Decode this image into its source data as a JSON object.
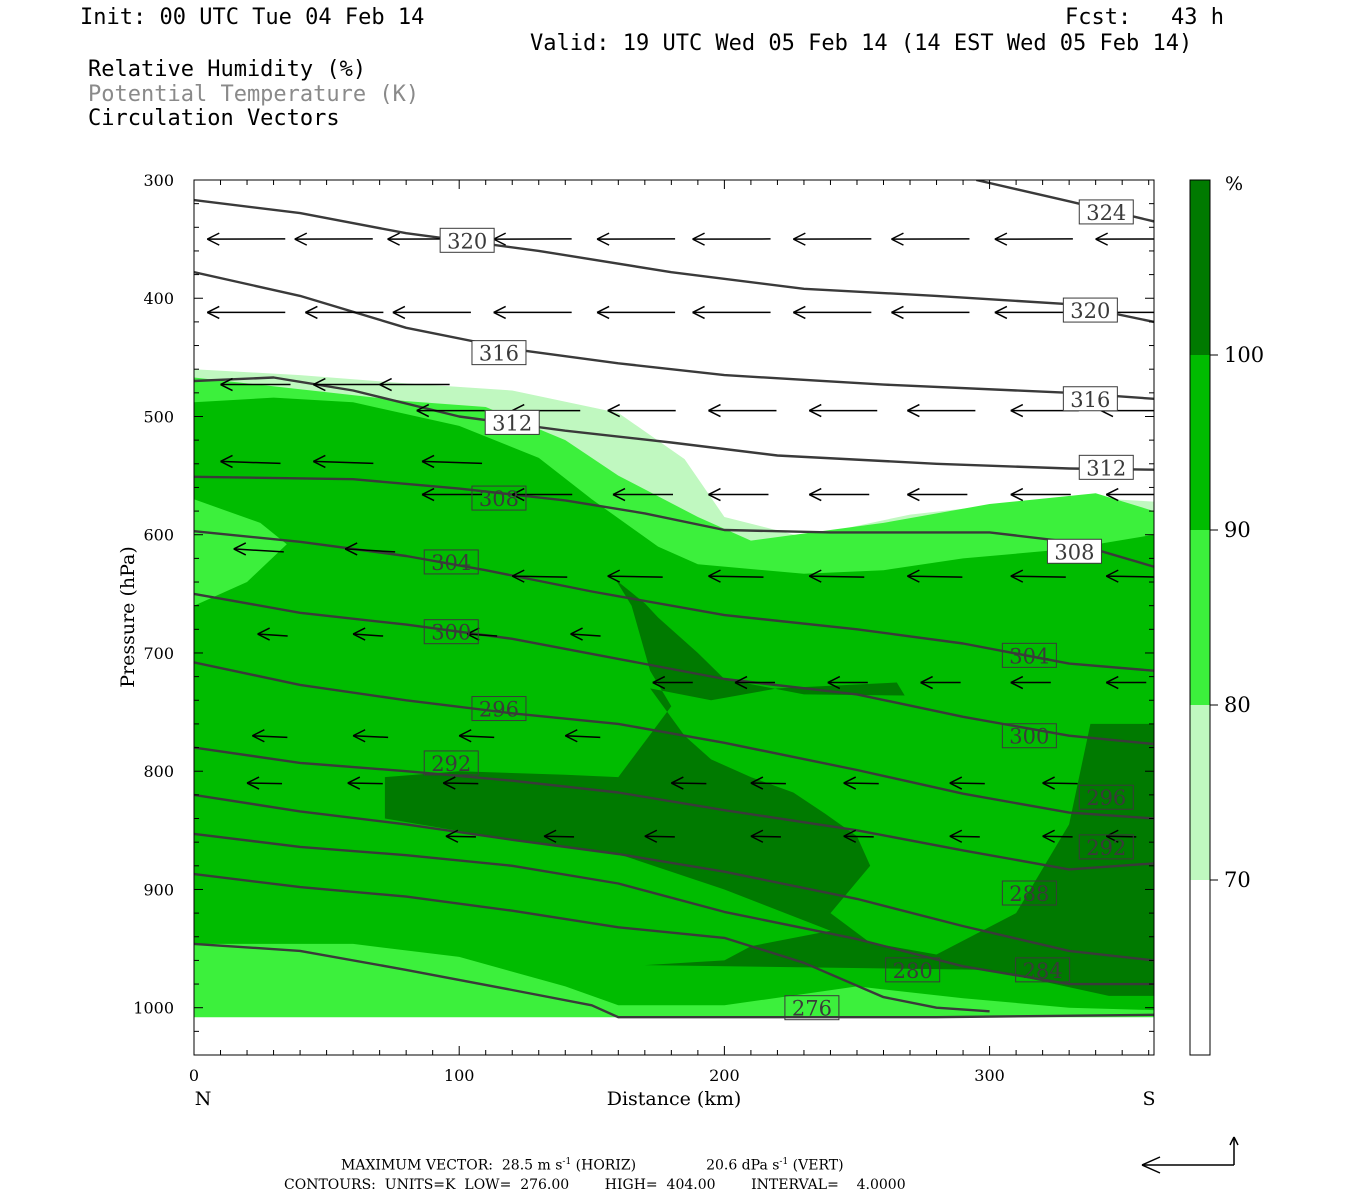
{
  "header": {
    "init": "Init: 00 UTC Tue 04 Feb 14",
    "fcst": "Fcst:   43 h",
    "valid": "Valid: 19 UTC Wed 05 Feb 14 (14 EST Wed 05 Feb 14)",
    "fields": [
      "Relative Humidity (%)",
      "Potential Temperature (K)",
      "Circulation Vectors"
    ]
  },
  "footer": {
    "max_vector": "MAXIMUM VECTOR:  28.5 m s",
    "max_vector_h_unit": " (HORIZ)",
    "max_vector_v": "20.6 dPa s",
    "max_vector_v_unit": " (VERT)",
    "sup": "-1",
    "contours": "CONTOURS:  UNITS=K  LOW=  276.00        HIGH=  404.00        INTERVAL=    4.0000"
  },
  "chart_data": {
    "type": "cross-section",
    "xlabel": "Distance (km)",
    "ylabel": "Pressure (hPa)",
    "x_end_labels": [
      "N",
      "S"
    ],
    "xlim": [
      0,
      362
    ],
    "ylim": [
      1040,
      300
    ],
    "xticks": [
      0,
      100,
      200,
      300
    ],
    "yticks": [
      300,
      400,
      500,
      600,
      700,
      800,
      900,
      1000
    ],
    "colorbar": {
      "unit": "%",
      "levels": [
        70,
        80,
        90,
        100
      ],
      "colors": [
        "#ffffff",
        "#c0f8c0",
        "#3cf03c",
        "#00bc00",
        "#007a00"
      ]
    },
    "theta_contour_labels": [
      {
        "value": "324",
        "x": 344,
        "p": 327
      },
      {
        "value": "320",
        "x": 103,
        "p": 351
      },
      {
        "value": "320",
        "x": 338,
        "p": 410
      },
      {
        "value": "316",
        "x": 115,
        "p": 446
      },
      {
        "value": "316",
        "x": 338,
        "p": 485
      },
      {
        "value": "312",
        "x": 120,
        "p": 505
      },
      {
        "value": "312",
        "x": 344,
        "p": 543
      },
      {
        "value": "308",
        "x": 115,
        "p": 569
      },
      {
        "value": "308",
        "x": 332,
        "p": 614
      },
      {
        "value": "304",
        "x": 97,
        "p": 623
      },
      {
        "value": "304",
        "x": 315,
        "p": 702
      },
      {
        "value": "300",
        "x": 97,
        "p": 682
      },
      {
        "value": "300",
        "x": 315,
        "p": 770
      },
      {
        "value": "296",
        "x": 115,
        "p": 747
      },
      {
        "value": "296",
        "x": 344,
        "p": 822
      },
      {
        "value": "292",
        "x": 97,
        "p": 793
      },
      {
        "value": "292",
        "x": 344,
        "p": 864
      },
      {
        "value": "288",
        "x": 315,
        "p": 903
      },
      {
        "value": "284",
        "x": 320,
        "p": 968
      },
      {
        "value": "280",
        "x": 271,
        "p": 968
      },
      {
        "value": "276",
        "x": 233,
        "p": 1000
      }
    ],
    "theta_contours": [
      {
        "value": 324,
        "points": [
          [
            295,
            300
          ],
          [
            330,
            318
          ],
          [
            362,
            335
          ]
        ]
      },
      {
        "value": 320,
        "points": [
          [
            0,
            317
          ],
          [
            40,
            328
          ],
          [
            80,
            345
          ],
          [
            130,
            360
          ],
          [
            180,
            378
          ],
          [
            230,
            392
          ],
          [
            280,
            398
          ],
          [
            330,
            405
          ],
          [
            362,
            420
          ]
        ]
      },
      {
        "value": 316,
        "points": [
          [
            0,
            378
          ],
          [
            40,
            398
          ],
          [
            80,
            425
          ],
          [
            120,
            443
          ],
          [
            160,
            455
          ],
          [
            200,
            465
          ],
          [
            260,
            473
          ],
          [
            330,
            480
          ],
          [
            362,
            485
          ]
        ]
      },
      {
        "value": 312,
        "points": [
          [
            0,
            470
          ],
          [
            30,
            467
          ],
          [
            60,
            478
          ],
          [
            100,
            500
          ],
          [
            140,
            512
          ],
          [
            180,
            522
          ],
          [
            220,
            533
          ],
          [
            280,
            540
          ],
          [
            330,
            544
          ],
          [
            362,
            545
          ]
        ]
      },
      {
        "value": 308,
        "points": [
          [
            0,
            551
          ],
          [
            60,
            553
          ],
          [
            100,
            561
          ],
          [
            140,
            571
          ],
          [
            170,
            582
          ],
          [
            200,
            596
          ],
          [
            240,
            598
          ],
          [
            300,
            598
          ],
          [
            330,
            606
          ],
          [
            362,
            627
          ]
        ]
      },
      {
        "value": 304,
        "points": [
          [
            0,
            597
          ],
          [
            40,
            606
          ],
          [
            80,
            618
          ],
          [
            110,
            630
          ],
          [
            150,
            648
          ],
          [
            200,
            668
          ],
          [
            250,
            680
          ],
          [
            290,
            692
          ],
          [
            330,
            709
          ],
          [
            362,
            715
          ]
        ]
      },
      {
        "value": 300,
        "points": [
          [
            0,
            650
          ],
          [
            40,
            666
          ],
          [
            80,
            676
          ],
          [
            120,
            688
          ],
          [
            160,
            705
          ],
          [
            200,
            722
          ],
          [
            250,
            735
          ],
          [
            290,
            754
          ],
          [
            330,
            770
          ],
          [
            362,
            777
          ]
        ]
      },
      {
        "value": 296,
        "points": [
          [
            0,
            708
          ],
          [
            40,
            727
          ],
          [
            80,
            740
          ],
          [
            120,
            751
          ],
          [
            160,
            760
          ],
          [
            200,
            776
          ],
          [
            250,
            799
          ],
          [
            290,
            819
          ],
          [
            330,
            835
          ],
          [
            362,
            840
          ]
        ]
      },
      {
        "value": 292,
        "points": [
          [
            0,
            780
          ],
          [
            40,
            793
          ],
          [
            80,
            800
          ],
          [
            120,
            808
          ],
          [
            160,
            818
          ],
          [
            200,
            833
          ],
          [
            250,
            850
          ],
          [
            290,
            867
          ],
          [
            330,
            883
          ],
          [
            362,
            878
          ]
        ]
      },
      {
        "value": 288,
        "points": [
          [
            0,
            820
          ],
          [
            40,
            834
          ],
          [
            80,
            845
          ],
          [
            120,
            858
          ],
          [
            160,
            870
          ],
          [
            200,
            885
          ],
          [
            250,
            908
          ],
          [
            290,
            931
          ],
          [
            330,
            952
          ],
          [
            362,
            960
          ]
        ]
      },
      {
        "value": 284,
        "points": [
          [
            0,
            853
          ],
          [
            40,
            864
          ],
          [
            80,
            871
          ],
          [
            120,
            880
          ],
          [
            160,
            895
          ],
          [
            200,
            919
          ],
          [
            250,
            942
          ],
          [
            290,
            965
          ],
          [
            330,
            980
          ],
          [
            362,
            980
          ]
        ]
      },
      {
        "value": 280,
        "points": [
          [
            0,
            887
          ],
          [
            40,
            898
          ],
          [
            80,
            906
          ],
          [
            120,
            918
          ],
          [
            160,
            932
          ],
          [
            200,
            941
          ],
          [
            230,
            962
          ],
          [
            260,
            991
          ],
          [
            280,
            1000
          ],
          [
            300,
            1003
          ]
        ]
      },
      {
        "value": 276,
        "points": [
          [
            0,
            946
          ],
          [
            40,
            952
          ],
          [
            80,
            968
          ],
          [
            120,
            985
          ],
          [
            150,
            998
          ],
          [
            160,
            1008
          ],
          [
            220,
            1008
          ],
          [
            280,
            1008
          ],
          [
            362,
            1006
          ]
        ]
      }
    ],
    "rh_regions": [
      {
        "level": "70-80",
        "points": [
          [
            0,
            460
          ],
          [
            40,
            465
          ],
          [
            80,
            472
          ],
          [
            120,
            478
          ],
          [
            160,
            497
          ],
          [
            185,
            536
          ],
          [
            200,
            585
          ],
          [
            230,
            602
          ],
          [
            270,
            583
          ],
          [
            330,
            568
          ],
          [
            362,
            572
          ],
          [
            362,
            1000
          ],
          [
            0,
            1000
          ]
        ]
      },
      {
        "level": "80-90",
        "points": [
          [
            0,
            467
          ],
          [
            40,
            477
          ],
          [
            80,
            487
          ],
          [
            110,
            492
          ],
          [
            140,
            520
          ],
          [
            160,
            550
          ],
          [
            190,
            585
          ],
          [
            210,
            605
          ],
          [
            260,
            590
          ],
          [
            300,
            574
          ],
          [
            340,
            565
          ],
          [
            362,
            580
          ],
          [
            362,
            625
          ],
          [
            345,
            642
          ],
          [
            350,
            690
          ],
          [
            362,
            700
          ],
          [
            362,
            1008
          ],
          [
            0,
            1008
          ]
        ]
      },
      {
        "level": "90-100",
        "points": [
          [
            0,
            488
          ],
          [
            30,
            484
          ],
          [
            60,
            488
          ],
          [
            100,
            508
          ],
          [
            130,
            535
          ],
          [
            150,
            570
          ],
          [
            175,
            610
          ],
          [
            190,
            625
          ],
          [
            230,
            633
          ],
          [
            260,
            630
          ],
          [
            290,
            620
          ],
          [
            330,
            612
          ],
          [
            362,
            600
          ],
          [
            362,
            1002
          ],
          [
            330,
            1000
          ],
          [
            290,
            992
          ],
          [
            250,
            982
          ],
          [
            200,
            998
          ],
          [
            160,
            998
          ],
          [
            140,
            982
          ],
          [
            100,
            957
          ],
          [
            60,
            946
          ],
          [
            0,
            946
          ],
          [
            0,
            660
          ],
          [
            20,
            640
          ],
          [
            35,
            608
          ],
          [
            25,
            590
          ],
          [
            0,
            570
          ]
        ]
      },
      {
        "level": ">100",
        "points": [
          [
            159,
            638
          ],
          [
            165,
            660
          ],
          [
            172,
            715
          ],
          [
            180,
            745
          ],
          [
            170,
            775
          ],
          [
            160,
            805
          ],
          [
            140,
            803
          ],
          [
            100,
            800
          ],
          [
            72,
            805
          ],
          [
            72,
            840
          ],
          [
            120,
            858
          ],
          [
            160,
            870
          ],
          [
            200,
            900
          ],
          [
            240,
            935
          ],
          [
            210,
            948
          ],
          [
            200,
            960
          ],
          [
            170,
            964
          ],
          [
            300,
            968
          ],
          [
            345,
            990
          ],
          [
            362,
            990
          ],
          [
            362,
            760
          ],
          [
            338,
            760
          ],
          [
            330,
            845
          ],
          [
            310,
            920
          ],
          [
            280,
            955
          ],
          [
            255,
            945
          ],
          [
            240,
            920
          ],
          [
            255,
            880
          ],
          [
            250,
            855
          ],
          [
            238,
            836
          ],
          [
            226,
            818
          ],
          [
            210,
            805
          ],
          [
            195,
            790
          ],
          [
            185,
            770
          ],
          [
            172,
            730
          ],
          [
            195,
            740
          ],
          [
            220,
            730
          ],
          [
            265,
            725
          ],
          [
            268,
            736
          ],
          [
            230,
            735
          ],
          [
            200,
            722
          ],
          [
            190,
            700
          ],
          [
            175,
            670
          ],
          [
            170,
            658
          ]
        ]
      }
    ]
  }
}
